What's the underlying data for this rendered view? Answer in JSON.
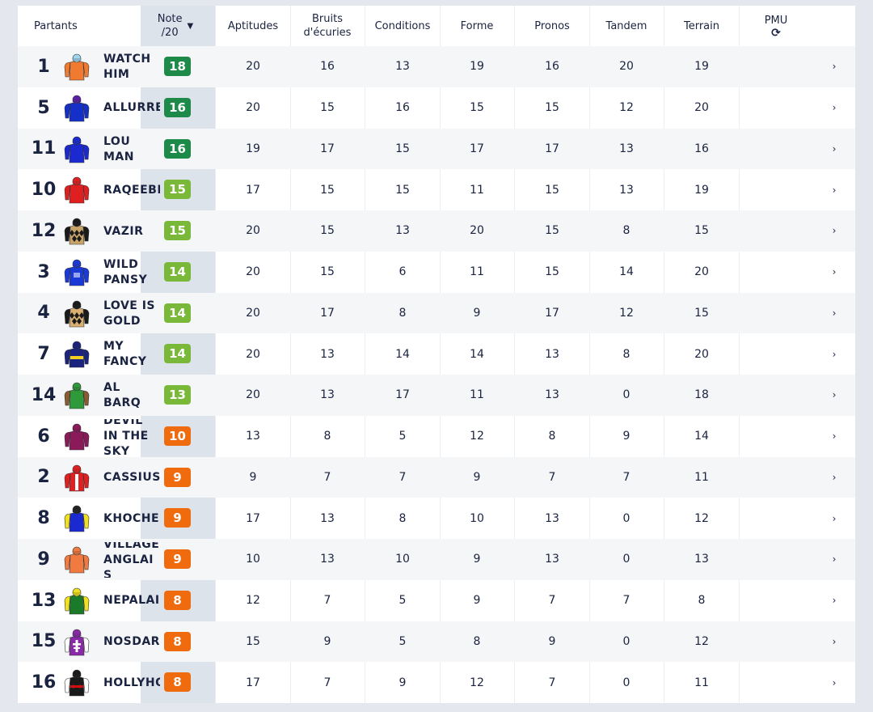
{
  "headers": {
    "partants": "Partants",
    "note_line1": "Note",
    "note_line2": "/20",
    "note_sort_icon": "caret-down-icon",
    "aptitudes": "Aptitudes",
    "bruits_line1": "Bruits",
    "bruits_line2": "d'écuries",
    "conditions": "Conditions",
    "forme": "Forme",
    "pronos": "Pronos",
    "tandem": "Tandem",
    "terrain": "Terrain",
    "pmu": "PMU",
    "pmu_icon": "refresh-icon"
  },
  "badge_colors": {
    "dark_green": "#1e8a4a",
    "light_green": "#7ab83a",
    "orange": "#f06a0e"
  },
  "rows": [
    {
      "num": "1",
      "name": "WATCH HIM",
      "note": "18",
      "tier": "dark_green",
      "aptitudes": "20",
      "bruits": "16",
      "conditions": "13",
      "forme": "19",
      "pronos": "16",
      "tandem": "20",
      "terrain": "19",
      "silk": {
        "body": "#f07a30",
        "sleeve": "#f07a30",
        "cap": "#9fd6ee",
        "pattern": "plain"
      }
    },
    {
      "num": "5",
      "name": "ALLURRE",
      "note": "16",
      "tier": "dark_green",
      "aptitudes": "20",
      "bruits": "15",
      "conditions": "16",
      "forme": "15",
      "pronos": "15",
      "tandem": "12",
      "terrain": "20",
      "silk": {
        "body": "#1530c8",
        "sleeve": "#1530c8",
        "cap": "#5a20a8",
        "pattern": "plain"
      }
    },
    {
      "num": "11",
      "name": "LOU MAN",
      "note": "16",
      "tier": "dark_green",
      "aptitudes": "19",
      "bruits": "17",
      "conditions": "15",
      "forme": "17",
      "pronos": "17",
      "tandem": "13",
      "terrain": "16",
      "silk": {
        "body": "#1a2ad0",
        "sleeve": "#1a2ad0",
        "cap": "#1a2ad0",
        "pattern": "plain"
      }
    },
    {
      "num": "10",
      "name": "RAQEEBB",
      "note": "15",
      "tier": "light_green",
      "aptitudes": "17",
      "bruits": "15",
      "conditions": "15",
      "forme": "11",
      "pronos": "15",
      "tandem": "13",
      "terrain": "19",
      "silk": {
        "body": "#e02020",
        "sleeve": "#e02020",
        "cap": "#e02020",
        "pattern": "plain"
      }
    },
    {
      "num": "12",
      "name": "VAZIR",
      "note": "15",
      "tier": "light_green",
      "aptitudes": "20",
      "bruits": "15",
      "conditions": "13",
      "forme": "20",
      "pronos": "15",
      "tandem": "8",
      "terrain": "15",
      "silk": {
        "body": "#c9a46a",
        "sleeve": "#1a1a1a",
        "cap": "#1a1a1a",
        "pattern": "diamonds"
      }
    },
    {
      "num": "3",
      "name": "WILD PANSY",
      "note": "14",
      "tier": "light_green",
      "aptitudes": "20",
      "bruits": "15",
      "conditions": "6",
      "forme": "11",
      "pronos": "15",
      "tandem": "14",
      "terrain": "20",
      "silk": {
        "body": "#1a3ad8",
        "sleeve": "#1a3ad8",
        "cap": "#1a3ad8",
        "pattern": "emblem"
      }
    },
    {
      "num": "4",
      "name": "LOVE IS GOLD",
      "note": "14",
      "tier": "light_green",
      "aptitudes": "20",
      "bruits": "17",
      "conditions": "8",
      "forme": "9",
      "pronos": "17",
      "tandem": "12",
      "terrain": "15",
      "silk": {
        "body": "#d9b070",
        "sleeve": "#1a1a1a",
        "cap": "#1a1a1a",
        "pattern": "diamonds"
      }
    },
    {
      "num": "7",
      "name": "MY FANCY",
      "note": "14",
      "tier": "light_green",
      "aptitudes": "20",
      "bruits": "13",
      "conditions": "14",
      "forme": "14",
      "pronos": "13",
      "tandem": "8",
      "terrain": "20",
      "silk": {
        "body": "#1a237e",
        "sleeve": "#1a237e",
        "cap": "#1a237e",
        "pattern": "yellowband"
      }
    },
    {
      "num": "14",
      "name": "AL BARQ",
      "note": "13",
      "tier": "light_green",
      "aptitudes": "20",
      "bruits": "13",
      "conditions": "17",
      "forme": "11",
      "pronos": "13",
      "tandem": "0",
      "terrain": "18",
      "silk": {
        "body": "#2e9a3a",
        "sleeve": "#8a5a30",
        "cap": "#2e9a3a",
        "pattern": "plain"
      }
    },
    {
      "num": "6",
      "name": "DEVIL IN THE SKY",
      "note": "10",
      "tier": "orange",
      "aptitudes": "13",
      "bruits": "8",
      "conditions": "5",
      "forme": "12",
      "pronos": "8",
      "tandem": "9",
      "terrain": "14",
      "silk": {
        "body": "#8a1a5a",
        "sleeve": "#8a1a5a",
        "cap": "#8a1a5a",
        "pattern": "plain"
      }
    },
    {
      "num": "2",
      "name": "CASSIUS",
      "note": "9",
      "tier": "orange",
      "aptitudes": "9",
      "bruits": "7",
      "conditions": "7",
      "forme": "9",
      "pronos": "7",
      "tandem": "7",
      "terrain": "11",
      "silk": {
        "body": "#e02020",
        "sleeve": "#e02020",
        "cap": "#e02020",
        "pattern": "whitestripe"
      }
    },
    {
      "num": "8",
      "name": "KHOCHENKO",
      "note": "9",
      "tier": "orange",
      "aptitudes": "17",
      "bruits": "13",
      "conditions": "8",
      "forme": "10",
      "pronos": "13",
      "tandem": "0",
      "terrain": "12",
      "silk": {
        "body": "#1a2ad0",
        "sleeve": "#f0e020",
        "cap": "#222222",
        "pattern": "plain"
      }
    },
    {
      "num": "9",
      "name": "VILLAGE ANGLAIS",
      "note": "9",
      "tier": "orange",
      "aptitudes": "10",
      "bruits": "13",
      "conditions": "10",
      "forme": "9",
      "pronos": "13",
      "tandem": "0",
      "terrain": "13",
      "silk": {
        "body": "#f07a40",
        "sleeve": "#f07a40",
        "cap": "#f07a40",
        "pattern": "plain"
      }
    },
    {
      "num": "13",
      "name": "NEPALAIS",
      "note": "8",
      "tier": "orange",
      "aptitudes": "12",
      "bruits": "7",
      "conditions": "5",
      "forme": "9",
      "pronos": "7",
      "tandem": "7",
      "terrain": "8",
      "silk": {
        "body": "#1a7a2a",
        "sleeve": "#f0e020",
        "cap": "#f0e020",
        "pattern": "plain"
      }
    },
    {
      "num": "15",
      "name": "NOSDARGENT",
      "note": "8",
      "tier": "orange",
      "aptitudes": "15",
      "bruits": "9",
      "conditions": "5",
      "forme": "8",
      "pronos": "9",
      "tandem": "0",
      "terrain": "12",
      "silk": {
        "body": "#8a2aa8",
        "sleeve": "#ffffff",
        "cap": "#8a2aa8",
        "pattern": "cross"
      }
    },
    {
      "num": "16",
      "name": "HOLLYHOCK",
      "note": "8",
      "tier": "orange",
      "aptitudes": "17",
      "bruits": "7",
      "conditions": "9",
      "forme": "12",
      "pronos": "7",
      "tandem": "0",
      "terrain": "11",
      "silk": {
        "body": "#1a1a1a",
        "sleeve": "#ffffff",
        "cap": "#1a1a1a",
        "pattern": "redband"
      }
    }
  ],
  "chevron_icon": "chevron-right-icon",
  "chevron_glyph": "›"
}
